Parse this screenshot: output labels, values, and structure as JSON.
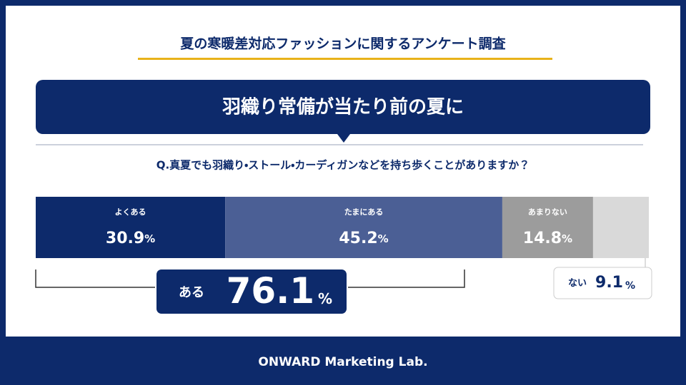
{
  "header": {
    "title": "夏の寒暖差対応ファッションに関するアンケート調査",
    "headline": "羽織り常備が当たり前の夏に",
    "question": "Q.真夏でも羽織り・ストール・カーディガンなどを持ち歩くことがありますか？"
  },
  "chart_data": {
    "type": "stacked-bar",
    "unit": "%",
    "xlim": [
      0,
      100
    ],
    "series": [
      {
        "name": "よくある",
        "color": "#0d2a6b",
        "values": [
          30.9
        ]
      },
      {
        "name": "たまにある",
        "color": "#4b5f95",
        "values": [
          45.2
        ]
      },
      {
        "name": "あまりない",
        "color": "#9c9c9c",
        "values": [
          14.8
        ]
      },
      {
        "name": "ない",
        "color": "#d9d9d9",
        "values": [
          9.1
        ]
      }
    ],
    "summary": {
      "label": "ある",
      "value": 76.1
    }
  },
  "footer": "ONWARD Marketing Lab."
}
